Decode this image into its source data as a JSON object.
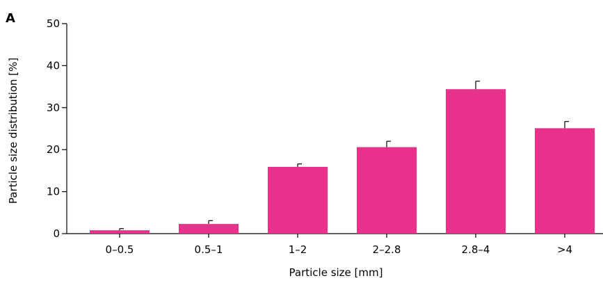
{
  "panel_label": "A",
  "chart_data": {
    "type": "bar",
    "categories": [
      "0–0.5",
      "0.5–1",
      "1–2",
      "2–2.8",
      "2.8–4",
      ">4"
    ],
    "values": [
      0.8,
      2.3,
      15.9,
      20.6,
      34.4,
      25.1
    ],
    "error_upper": [
      0.4,
      0.8,
      0.7,
      1.4,
      1.9,
      1.6
    ],
    "xlabel": "Particle size  [mm]",
    "ylabel": "Particle size distribution [%]",
    "ylim": [
      0,
      50
    ],
    "yticks": [
      0,
      10,
      20,
      30,
      40,
      50
    ],
    "bar_color": "#E8318A",
    "grid": false,
    "legend": "none"
  }
}
